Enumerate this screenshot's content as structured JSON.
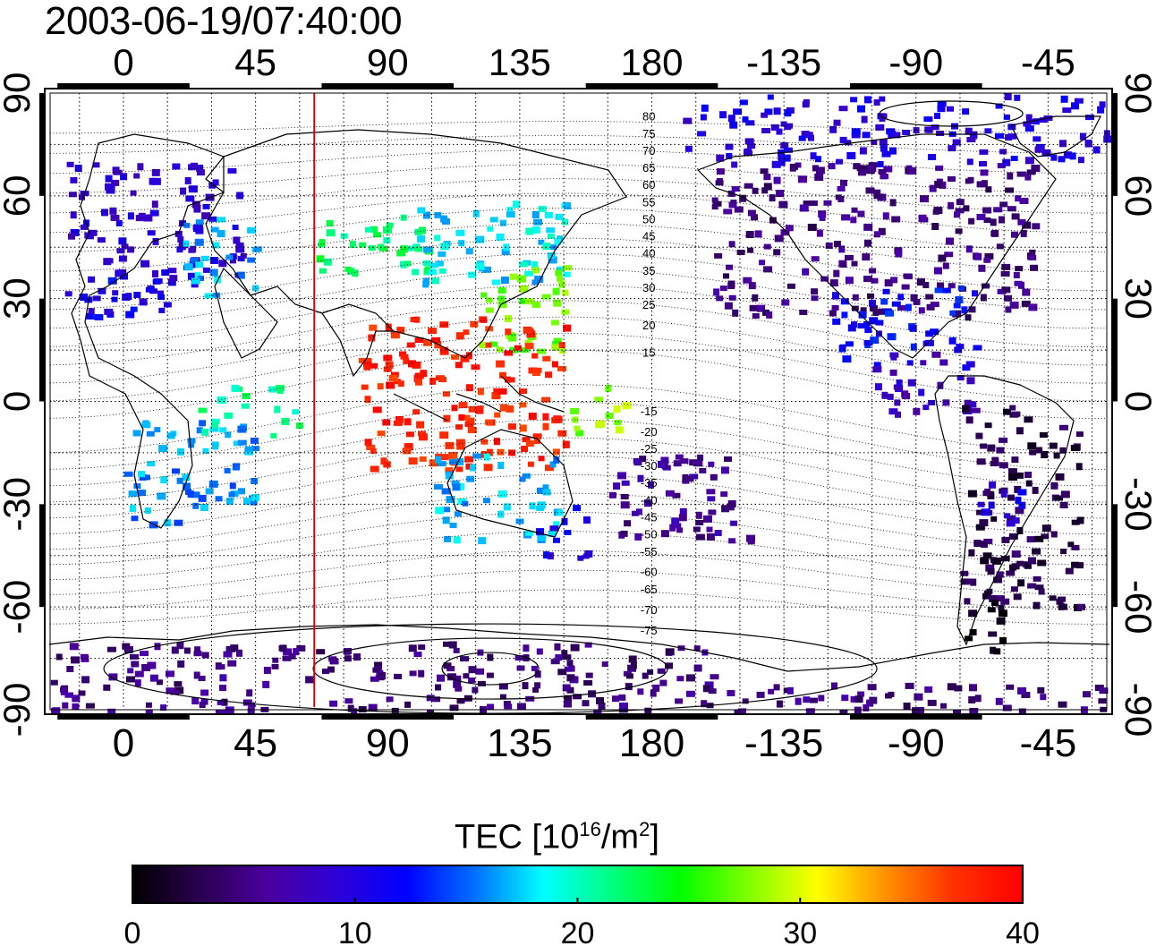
{
  "header": {
    "timestamp": "2003-06-19/07:40:00"
  },
  "map": {
    "top_lon_ticks": [
      "0",
      "45",
      "90",
      "135",
      "180",
      "-135",
      "-90",
      "-45"
    ],
    "bottom_lon_ticks": [
      "0",
      "45",
      "90",
      "135",
      "180",
      "-135",
      "-90",
      "-45"
    ],
    "left_lat_ticks": [
      "90",
      "60",
      "30",
      "0",
      "-30",
      "-60",
      "-90"
    ],
    "right_lat_ticks": [
      "90",
      "60",
      "30",
      "0",
      "-30",
      "-60",
      "-90"
    ],
    "lon_range": [
      -25,
      335
    ],
    "lat_range": [
      -90,
      90
    ],
    "marker_meridian_lon": 65,
    "marker_color": "#e00000",
    "contour_labels": [
      {
        "lon": 179,
        "lat": 82,
        "text": "80"
      },
      {
        "lon": 179,
        "lat": 77,
        "text": "75"
      },
      {
        "lon": 179,
        "lat": 72,
        "text": "70"
      },
      {
        "lon": 179,
        "lat": 67,
        "text": "65"
      },
      {
        "lon": 179,
        "lat": 62,
        "text": "60"
      },
      {
        "lon": 179,
        "lat": 57,
        "text": "55"
      },
      {
        "lon": 179,
        "lat": 52,
        "text": "50"
      },
      {
        "lon": 179,
        "lat": 47,
        "text": "45"
      },
      {
        "lon": 179,
        "lat": 42,
        "text": "40"
      },
      {
        "lon": 179,
        "lat": 37,
        "text": "35"
      },
      {
        "lon": 179,
        "lat": 32,
        "text": "30"
      },
      {
        "lon": 179,
        "lat": 27,
        "text": "25"
      },
      {
        "lon": 179,
        "lat": 21,
        "text": "20"
      },
      {
        "lon": 179,
        "lat": 13,
        "text": "15"
      },
      {
        "lon": 179,
        "lat": -4,
        "text": "-15"
      },
      {
        "lon": 179,
        "lat": -10,
        "text": "-20"
      },
      {
        "lon": 179,
        "lat": -15,
        "text": "-25"
      },
      {
        "lon": 179,
        "lat": -20,
        "text": "-30"
      },
      {
        "lon": 179,
        "lat": -25,
        "text": "-35"
      },
      {
        "lon": 179,
        "lat": -30,
        "text": "-40"
      },
      {
        "lon": 179,
        "lat": -35,
        "text": "-45"
      },
      {
        "lon": 179,
        "lat": -40,
        "text": "-50"
      },
      {
        "lon": 179,
        "lat": -45,
        "text": "-55"
      },
      {
        "lon": 179,
        "lat": -51,
        "text": "-60"
      },
      {
        "lon": 179,
        "lat": -56,
        "text": "-65"
      },
      {
        "lon": 179,
        "lat": -62,
        "text": "-70"
      },
      {
        "lon": 179,
        "lat": -68,
        "text": "-75"
      }
    ]
  },
  "colorbar": {
    "title": "TEC  [10",
    "title_sup": "16",
    "title_mid": "/m",
    "title_sup2": "2",
    "title_end": "]",
    "min": 0,
    "max": 40,
    "ticks": [
      "0",
      "10",
      "20",
      "30",
      "40"
    ],
    "stops": [
      "#000000",
      "#2a0050",
      "#4b00a0",
      "#2d00d8",
      "#0000ff",
      "#0070ff",
      "#00ffff",
      "#00ff80",
      "#00ff00",
      "#80ff00",
      "#ffff00",
      "#ff9000",
      "#ff3000",
      "#ff0000"
    ]
  },
  "tec_regions": [
    {
      "lon": [
        -20,
        40
      ],
      "lat": [
        35,
        70
      ],
      "value": 9
    },
    {
      "lon": [
        20,
        45
      ],
      "lat": [
        30,
        55
      ],
      "value": 17
    },
    {
      "lon": [
        -20,
        15
      ],
      "lat": [
        25,
        40
      ],
      "value": 11
    },
    {
      "lon": [
        0,
        45
      ],
      "lat": [
        -35,
        -5
      ],
      "value": 16
    },
    {
      "lon": [
        25,
        60
      ],
      "lat": [
        -10,
        5
      ],
      "value": 21
    },
    {
      "lon": [
        65,
        105
      ],
      "lat": [
        38,
        55
      ],
      "value": 22
    },
    {
      "lon": [
        100,
        150
      ],
      "lat": [
        35,
        60
      ],
      "value": 18
    },
    {
      "lon": [
        120,
        150
      ],
      "lat": [
        15,
        40
      ],
      "value": 27
    },
    {
      "lon": [
        80,
        150
      ],
      "lat": [
        -20,
        25
      ],
      "value": 38
    },
    {
      "lon": [
        105,
        150
      ],
      "lat": [
        -40,
        -15
      ],
      "value": 17
    },
    {
      "lon": [
        140,
        160
      ],
      "lat": [
        -45,
        -30
      ],
      "value": 11
    },
    {
      "lon": [
        150,
        170
      ],
      "lat": [
        -10,
        5
      ],
      "value": 28
    },
    {
      "lon": [
        165,
        215
      ],
      "lat": [
        -40,
        -15
      ],
      "value": 6
    },
    {
      "lon": [
        200,
        310
      ],
      "lat": [
        25,
        70
      ],
      "value": 5
    },
    {
      "lon": [
        240,
        290
      ],
      "lat": [
        10,
        35
      ],
      "value": 12
    },
    {
      "lon": [
        255,
        290
      ],
      "lat": [
        -5,
        15
      ],
      "value": 8
    },
    {
      "lon": [
        285,
        325
      ],
      "lat": [
        -60,
        0
      ],
      "value": 3
    },
    {
      "lon": [
        290,
        305
      ],
      "lat": [
        -35,
        -20
      ],
      "value": 10
    },
    {
      "lon": [
        280,
        300
      ],
      "lat": [
        -75,
        -60
      ],
      "value": 1
    },
    {
      "lon": [
        205,
        335
      ],
      "lat": [
        -90,
        -82
      ],
      "value": 5
    },
    {
      "lon": [
        -25,
        200
      ],
      "lat": [
        -90,
        -70
      ],
      "value": 5
    },
    {
      "lon": [
        190,
        335
      ],
      "lat": [
        70,
        90
      ],
      "value": 10
    }
  ]
}
